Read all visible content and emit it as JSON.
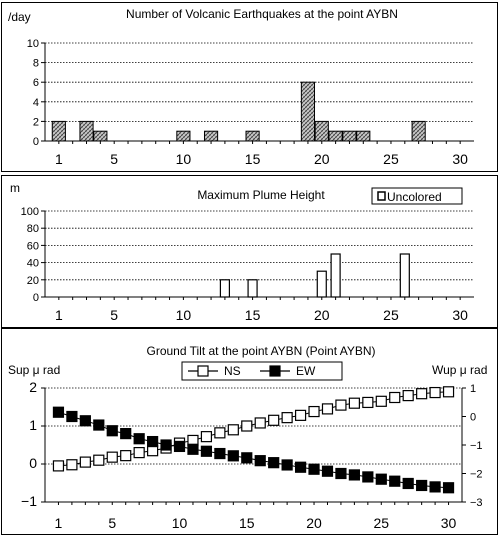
{
  "chart_data": [
    {
      "type": "bar",
      "title": "Number of Volcanic Earthquakes at the point AYBN",
      "ylabel": "/day",
      "ylim": [
        0,
        10
      ],
      "yticks": [
        "0",
        "2",
        "4",
        "6",
        "8",
        "10"
      ],
      "xlim": [
        0,
        31
      ],
      "xticks": [
        "1",
        "5",
        "10",
        "15",
        "20",
        "25",
        "30"
      ],
      "grid": true,
      "series": [
        {
          "fill": "hatched",
          "points": [
            {
              "x": 1,
              "y": 2
            },
            {
              "x": 3,
              "y": 2
            },
            {
              "x": 4,
              "y": 1
            },
            {
              "x": 10,
              "y": 1
            },
            {
              "x": 12,
              "y": 1
            },
            {
              "x": 15,
              "y": 1
            },
            {
              "x": 19,
              "y": 6
            },
            {
              "x": 20,
              "y": 2
            },
            {
              "x": 21,
              "y": 1
            },
            {
              "x": 22,
              "y": 1
            },
            {
              "x": 23,
              "y": 1
            },
            {
              "x": 27,
              "y": 2
            }
          ]
        }
      ]
    },
    {
      "type": "bar",
      "title": "Maximum Plume Height",
      "ylabel": "m",
      "ylim": [
        0,
        100
      ],
      "yticks": [
        "0",
        "20",
        "40",
        "60",
        "80",
        "100"
      ],
      "xlim": [
        0,
        31
      ],
      "xticks": [
        "1",
        "5",
        "10",
        "15",
        "20",
        "25",
        "30"
      ],
      "grid": true,
      "legend": {
        "position": "top-right",
        "entries": [
          "Uncolored"
        ]
      },
      "series": [
        {
          "name": "Uncolored",
          "fill": "white",
          "points": [
            {
              "x": 13,
              "y": 20
            },
            {
              "x": 15,
              "y": 20
            },
            {
              "x": 20,
              "y": 30
            },
            {
              "x": 21,
              "y": 50
            },
            {
              "x": 26,
              "y": 50
            }
          ]
        }
      ]
    },
    {
      "type": "line",
      "title": "Ground Tilt at the point AYBN (Point AYBN)",
      "ylabel_left": "Sup μ rad",
      "ylabel_right": "Wup μ rad",
      "ylim_left": [
        -1,
        2
      ],
      "ylim_right": [
        -3,
        1
      ],
      "yticks_left": [
        "2",
        "1",
        "0",
        "−1"
      ],
      "yticks_right": [
        "1",
        "0",
        "−1",
        "−2",
        "−3"
      ],
      "xlim": [
        0,
        31
      ],
      "xticks": [
        "1",
        "5",
        "10",
        "15",
        "20",
        "25",
        "30"
      ],
      "grid": true,
      "legend": {
        "position": "top-center",
        "entries": [
          "NS",
          "EW"
        ]
      },
      "x": [
        1,
        2,
        3,
        4,
        5,
        6,
        7,
        8,
        9,
        10,
        11,
        12,
        13,
        14,
        15,
        16,
        17,
        18,
        19,
        20,
        21,
        22,
        23,
        24,
        25,
        26,
        27,
        28,
        29,
        30
      ],
      "series": [
        {
          "name": "NS",
          "axis": "left",
          "marker": "open-square",
          "values": [
            -0.05,
            -0.02,
            0.05,
            0.1,
            0.18,
            0.22,
            0.3,
            0.35,
            0.42,
            0.55,
            0.62,
            0.72,
            0.82,
            0.9,
            1.0,
            1.08,
            1.15,
            1.22,
            1.28,
            1.38,
            1.45,
            1.55,
            1.6,
            1.62,
            1.65,
            1.75,
            1.8,
            1.85,
            1.88,
            1.9
          ]
        },
        {
          "name": "EW",
          "axis": "right",
          "marker": "filled-square",
          "values": [
            0.15,
            0.0,
            -0.15,
            -0.3,
            -0.5,
            -0.6,
            -0.78,
            -0.88,
            -1.0,
            -1.05,
            -1.15,
            -1.22,
            -1.3,
            -1.38,
            -1.45,
            -1.55,
            -1.62,
            -1.7,
            -1.78,
            -1.85,
            -1.92,
            -2.0,
            -2.05,
            -2.12,
            -2.2,
            -2.27,
            -2.35,
            -2.42,
            -2.47,
            -2.5
          ]
        }
      ]
    }
  ]
}
